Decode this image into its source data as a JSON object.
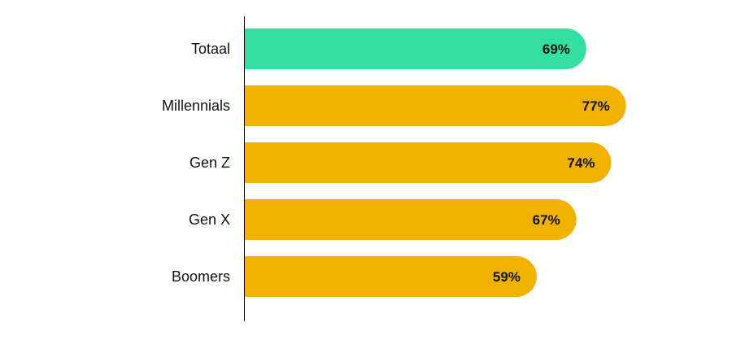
{
  "chart_data": {
    "type": "bar",
    "orientation": "horizontal",
    "categories": [
      "Totaal",
      "Millennials",
      "Gen Z",
      "Gen X",
      "Boomers"
    ],
    "values": [
      69,
      77,
      74,
      67,
      59
    ],
    "value_labels": [
      "69%",
      "77%",
      "74%",
      "67%",
      "59%"
    ],
    "value_suffix": "%",
    "xlim": [
      0,
      100
    ],
    "grid": false,
    "legend": "none",
    "bar_colors": [
      "#34e0a1",
      "#f0b100",
      "#f0b100",
      "#f0b100",
      "#f0b100"
    ]
  },
  "colors": {
    "highlight": "#34e0a1",
    "default": "#f0b100",
    "axis": "#111111",
    "text": "#111111"
  }
}
